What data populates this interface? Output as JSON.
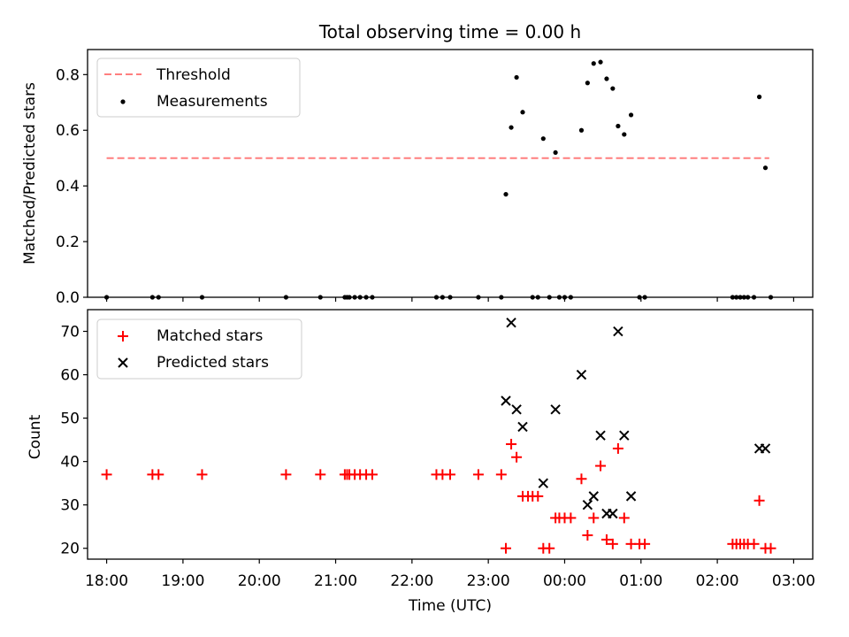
{
  "chart_data": [
    {
      "type": "scatter",
      "title": "Total observing time = 0.00 h",
      "ylabel": "Matched/Predicted stars",
      "xlabel": "",
      "xlim": [
        -0.25,
        9.25
      ],
      "ylim": [
        0,
        0.89
      ],
      "yticks": [
        0,
        0.2,
        0.4,
        0.6,
        0.8
      ],
      "ytick_labels": [
        "0.0",
        "0.2",
        "0.4",
        "0.6",
        "0.8"
      ],
      "legend_position": "upper left",
      "threshold": {
        "name": "Threshold",
        "y": 0.5,
        "x_range": [
          0.0,
          8.68
        ],
        "color": "#ff7f7f",
        "style": "dashed"
      },
      "series": [
        {
          "name": "Measurements",
          "color": "#000000",
          "marker": "dot",
          "points": [
            [
              0.0,
              0
            ],
            [
              0.6,
              0
            ],
            [
              0.68,
              0
            ],
            [
              1.25,
              0
            ],
            [
              2.35,
              0
            ],
            [
              2.8,
              0
            ],
            [
              3.12,
              0
            ],
            [
              3.15,
              0
            ],
            [
              3.18,
              0
            ],
            [
              3.25,
              0
            ],
            [
              3.32,
              0
            ],
            [
              3.4,
              0
            ],
            [
              3.48,
              0
            ],
            [
              4.32,
              0
            ],
            [
              4.4,
              0
            ],
            [
              4.5,
              0
            ],
            [
              4.87,
              0
            ],
            [
              5.17,
              0
            ],
            [
              5.58,
              0
            ],
            [
              5.65,
              0
            ],
            [
              5.8,
              0
            ],
            [
              5.93,
              0
            ],
            [
              6.0,
              0
            ],
            [
              6.08,
              0
            ],
            [
              6.98,
              0
            ],
            [
              7.05,
              0
            ],
            [
              8.2,
              0
            ],
            [
              8.25,
              0
            ],
            [
              8.3,
              0
            ],
            [
              8.35,
              0
            ],
            [
              8.4,
              0
            ],
            [
              8.48,
              0
            ],
            [
              8.7,
              0
            ],
            [
              5.23,
              0.37
            ],
            [
              5.3,
              0.61
            ],
            [
              5.37,
              0.79
            ],
            [
              5.45,
              0.665
            ],
            [
              5.72,
              0.57
            ],
            [
              5.88,
              0.52
            ],
            [
              6.22,
              0.6
            ],
            [
              6.3,
              0.77
            ],
            [
              6.38,
              0.84
            ],
            [
              6.47,
              0.845
            ],
            [
              6.55,
              0.785
            ],
            [
              6.63,
              0.75
            ],
            [
              6.7,
              0.615
            ],
            [
              6.78,
              0.585
            ],
            [
              6.87,
              0.655
            ],
            [
              8.55,
              0.72
            ],
            [
              8.63,
              0.465
            ]
          ]
        }
      ]
    },
    {
      "type": "scatter",
      "title": "",
      "ylabel": "Count",
      "xlabel": "Time (UTC)",
      "xlim": [
        -0.25,
        9.25
      ],
      "ylim": [
        17.5,
        75
      ],
      "yticks": [
        20,
        30,
        40,
        50,
        60,
        70
      ],
      "ytick_labels": [
        "20",
        "30",
        "40",
        "50",
        "60",
        "70"
      ],
      "xticks": [
        0,
        1,
        2,
        3,
        4,
        5,
        6,
        7,
        8,
        9
      ],
      "xtick_labels": [
        "18:00",
        "19:00",
        "20:00",
        "21:00",
        "22:00",
        "23:00",
        "00:00",
        "01:00",
        "02:00",
        "03:00"
      ],
      "legend_position": "upper left",
      "series": [
        {
          "name": "Matched stars",
          "color": "#ff0000",
          "marker": "plus",
          "points": [
            [
              0.0,
              37
            ],
            [
              0.6,
              37
            ],
            [
              0.68,
              37
            ],
            [
              1.25,
              37
            ],
            [
              2.35,
              37
            ],
            [
              2.8,
              37
            ],
            [
              3.12,
              37
            ],
            [
              3.15,
              37
            ],
            [
              3.18,
              37
            ],
            [
              3.25,
              37
            ],
            [
              3.32,
              37
            ],
            [
              3.4,
              37
            ],
            [
              3.48,
              37
            ],
            [
              4.32,
              37
            ],
            [
              4.4,
              37
            ],
            [
              4.5,
              37
            ],
            [
              4.87,
              37
            ],
            [
              5.17,
              37
            ],
            [
              5.23,
              20
            ],
            [
              5.3,
              44
            ],
            [
              5.37,
              41
            ],
            [
              5.45,
              32
            ],
            [
              5.52,
              32
            ],
            [
              5.58,
              32
            ],
            [
              5.65,
              32
            ],
            [
              5.72,
              20
            ],
            [
              5.8,
              20
            ],
            [
              5.88,
              27
            ],
            [
              5.93,
              27
            ],
            [
              6.0,
              27
            ],
            [
              6.08,
              27
            ],
            [
              6.22,
              36
            ],
            [
              6.3,
              23
            ],
            [
              6.38,
              27
            ],
            [
              6.47,
              39
            ],
            [
              6.55,
              22
            ],
            [
              6.63,
              21
            ],
            [
              6.7,
              43
            ],
            [
              6.78,
              27
            ],
            [
              6.87,
              21
            ],
            [
              6.98,
              21
            ],
            [
              7.05,
              21
            ],
            [
              8.2,
              21
            ],
            [
              8.25,
              21
            ],
            [
              8.3,
              21
            ],
            [
              8.35,
              21
            ],
            [
              8.4,
              21
            ],
            [
              8.48,
              21
            ],
            [
              8.55,
              31
            ],
            [
              8.63,
              20
            ],
            [
              8.7,
              20
            ]
          ]
        },
        {
          "name": "Predicted stars",
          "color": "#000000",
          "marker": "x",
          "points": [
            [
              5.23,
              54
            ],
            [
              5.3,
              72
            ],
            [
              5.37,
              52
            ],
            [
              5.45,
              48
            ],
            [
              5.72,
              35
            ],
            [
              5.88,
              52
            ],
            [
              6.22,
              60
            ],
            [
              6.3,
              30
            ],
            [
              6.38,
              32
            ],
            [
              6.47,
              46
            ],
            [
              6.55,
              28
            ],
            [
              6.63,
              28
            ],
            [
              6.7,
              70
            ],
            [
              6.78,
              46
            ],
            [
              6.87,
              32
            ],
            [
              8.55,
              43
            ],
            [
              8.63,
              43
            ]
          ]
        }
      ]
    }
  ]
}
